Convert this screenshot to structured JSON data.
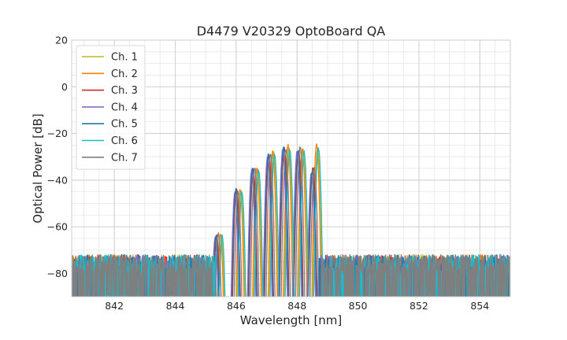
{
  "chart_data": {
    "type": "line",
    "title": "D4479 V20329 OptoBoard QA",
    "xlabel": "Wavelength [nm]",
    "ylabel": "Optical Power [dB]",
    "xlim": [
      840.6,
      855.0
    ],
    "ylim": [
      -90,
      20
    ],
    "xticks": [
      842,
      844,
      846,
      848,
      850,
      852,
      854
    ],
    "xtick_labels": [
      "842",
      "844",
      "846",
      "848",
      "850",
      "852",
      "854"
    ],
    "yticks": [
      20,
      0,
      -20,
      -40,
      -60,
      -80
    ],
    "ytick_labels": [
      "20",
      "0",
      "−20",
      "−40",
      "−60",
      "−80"
    ],
    "grid": true,
    "minor_grid": true,
    "legend_position": "top-left",
    "noise_floor": {
      "mean": -82,
      "top": -72,
      "bottom": -90
    },
    "series": [
      {
        "name": "Ch. 1",
        "color": "#bcbd22",
        "peak_offset": 0.15,
        "peaks": [
          [
            845.51,
            -64
          ],
          [
            846.16,
            -44
          ],
          [
            846.71,
            -35
          ],
          [
            847.23,
            -28
          ],
          [
            847.73,
            -26
          ],
          [
            848.2,
            -27
          ],
          [
            848.67,
            -26
          ]
        ]
      },
      {
        "name": "Ch. 2",
        "color": "#ff7f0e",
        "peak_offset": 0.12,
        "peaks": [
          [
            845.48,
            -63
          ],
          [
            846.13,
            -44
          ],
          [
            846.68,
            -35
          ],
          [
            847.2,
            -28
          ],
          [
            847.7,
            -25
          ],
          [
            848.17,
            -27
          ],
          [
            848.64,
            -25
          ]
        ]
      },
      {
        "name": "Ch. 3",
        "color": "#d62728",
        "peak_offset": 0.0,
        "peaks": [
          [
            845.36,
            -64
          ],
          [
            846.01,
            -44
          ],
          [
            846.56,
            -35
          ],
          [
            847.08,
            -29
          ],
          [
            847.58,
            -26
          ],
          [
            848.05,
            -27
          ],
          [
            848.52,
            -35
          ]
        ]
      },
      {
        "name": "Ch. 4",
        "color": "#9467bd",
        "peak_offset": -0.05,
        "peaks": [
          [
            845.31,
            -65
          ],
          [
            845.96,
            -45
          ],
          [
            846.51,
            -36
          ],
          [
            847.03,
            -30
          ],
          [
            847.53,
            -27
          ],
          [
            848.0,
            -28
          ],
          [
            848.47,
            -37
          ]
        ]
      },
      {
        "name": "Ch. 5",
        "color": "#1f77b4",
        "peak_offset": -0.02,
        "peaks": [
          [
            845.34,
            -64
          ],
          [
            845.99,
            -44
          ],
          [
            846.54,
            -35
          ],
          [
            847.06,
            -29
          ],
          [
            847.56,
            -26
          ],
          [
            848.03,
            -28
          ],
          [
            848.5,
            -36
          ]
        ]
      },
      {
        "name": "Ch. 6",
        "color": "#17becf",
        "peak_offset": 0.18,
        "peaks": [
          [
            845.54,
            -64
          ],
          [
            846.19,
            -45
          ],
          [
            846.74,
            -36
          ],
          [
            847.26,
            -29
          ],
          [
            847.76,
            -27
          ],
          [
            848.23,
            -28
          ],
          [
            848.7,
            -26
          ]
        ]
      },
      {
        "name": "Ch. 7",
        "color": "#7f7f7f",
        "peak_offset": 0.05,
        "peaks": [
          [
            845.41,
            -63
          ],
          [
            846.06,
            -45
          ],
          [
            846.61,
            -35
          ],
          [
            847.13,
            -29
          ],
          [
            847.63,
            -27
          ],
          [
            848.1,
            -26
          ],
          [
            848.57,
            -35
          ]
        ]
      }
    ]
  }
}
